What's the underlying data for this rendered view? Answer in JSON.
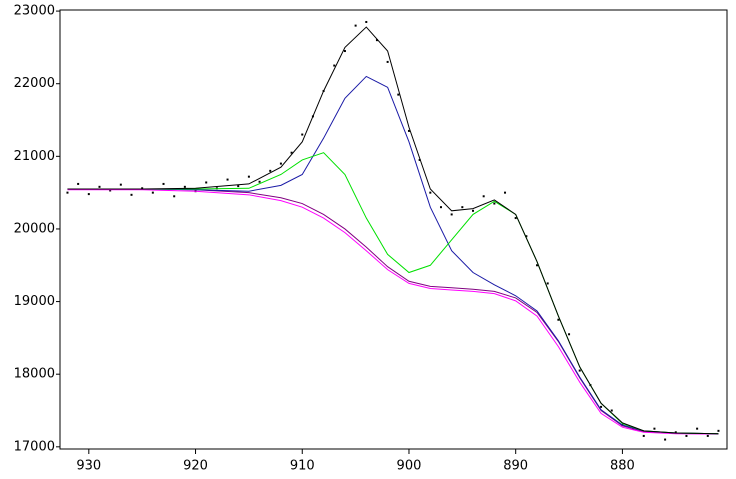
{
  "chart_data": {
    "type": "line",
    "xlim": [
      932.7,
      870.2
    ],
    "ylim": [
      16970,
      23015
    ],
    "xticks": [
      930,
      920,
      910,
      900,
      890,
      880
    ],
    "yticks": [
      17000,
      18000,
      19000,
      20000,
      21000,
      22000,
      23000
    ],
    "grid": false,
    "series": [
      {
        "style": "markers",
        "color": "#000000",
        "x": [
          932,
          931,
          930,
          929,
          928,
          927,
          926,
          925,
          924,
          923,
          922,
          921,
          920,
          919,
          918,
          917,
          916,
          915,
          914,
          913,
          912,
          911,
          910,
          909,
          908,
          907,
          906,
          905,
          904,
          903,
          902,
          901,
          900,
          899,
          898,
          897,
          896,
          895,
          894,
          893,
          892,
          891,
          890,
          889,
          888,
          887,
          886,
          885,
          884,
          883,
          882,
          881,
          880,
          879,
          878,
          877,
          876,
          875,
          874,
          873,
          872,
          871
        ],
        "values": [
          20500,
          20620,
          20480,
          20580,
          20530,
          20610,
          20470,
          20560,
          20500,
          20620,
          20450,
          20580,
          20520,
          20640,
          20560,
          20680,
          20590,
          20720,
          20650,
          20800,
          20900,
          21050,
          21300,
          21550,
          21900,
          22250,
          22450,
          22800,
          22850,
          22600,
          22300,
          21850,
          21350,
          20950,
          20500,
          20300,
          20200,
          20300,
          20250,
          20450,
          20350,
          20500,
          20150,
          19900,
          19500,
          19250,
          18750,
          18550,
          18050,
          17850,
          17550,
          17500,
          17300,
          17250,
          17150,
          17250,
          17100,
          17200,
          17150,
          17250,
          17150,
          17220
        ]
      },
      {
        "style": "line",
        "color": "#800080",
        "x": [
          932,
          930,
          925,
          920,
          915,
          912,
          910,
          908,
          906,
          904,
          902,
          900,
          898,
          896,
          894,
          892,
          890,
          888,
          886,
          884,
          882,
          880,
          878,
          875,
          871
        ],
        "values": [
          20550,
          20550,
          20550,
          20540,
          20500,
          20430,
          20350,
          20200,
          20000,
          19750,
          19480,
          19280,
          19210,
          19190,
          19170,
          19140,
          19050,
          18850,
          18450,
          17950,
          17500,
          17290,
          17210,
          17190,
          17180
        ]
      },
      {
        "style": "line",
        "color": "#ff00ff",
        "x": [
          932,
          930,
          925,
          920,
          915,
          912,
          910,
          908,
          906,
          904,
          902,
          900,
          898,
          896,
          894,
          892,
          890,
          888,
          886,
          884,
          882,
          880,
          878,
          875,
          871
        ],
        "values": [
          20540,
          20540,
          20540,
          20520,
          20470,
          20390,
          20300,
          20150,
          19950,
          19700,
          19440,
          19250,
          19180,
          19160,
          19140,
          19110,
          19010,
          18800,
          18380,
          17890,
          17460,
          17270,
          17200,
          17180,
          17175
        ]
      },
      {
        "style": "line",
        "color": "#1a1aa6",
        "x": [
          932,
          930,
          925,
          920,
          915,
          912,
          910,
          908,
          906,
          904,
          902,
          900,
          898,
          896,
          894,
          892,
          890,
          888,
          886,
          884,
          882,
          880,
          878,
          875,
          871
        ],
        "values": [
          20550,
          20550,
          20550,
          20540,
          20520,
          20600,
          20750,
          21250,
          21800,
          22100,
          21950,
          21200,
          20300,
          19700,
          19400,
          19230,
          19080,
          18870,
          18460,
          17960,
          17510,
          17300,
          17220,
          17190,
          17180
        ]
      },
      {
        "style": "line",
        "color": "#00e000",
        "x": [
          932,
          930,
          925,
          920,
          915,
          912,
          910,
          908,
          906,
          904,
          902,
          900,
          898,
          896,
          894,
          892,
          890,
          888,
          886,
          884,
          882,
          880,
          878,
          875,
          871
        ],
        "values": [
          20550,
          20550,
          20550,
          20550,
          20560,
          20750,
          20950,
          21050,
          20750,
          20150,
          19650,
          19400,
          19500,
          19850,
          20200,
          20380,
          20200,
          19550,
          18800,
          18100,
          17600,
          17320,
          17220,
          17190,
          17180
        ]
      },
      {
        "style": "line",
        "color": "#000000",
        "x": [
          932,
          930,
          925,
          920,
          915,
          912,
          910,
          908,
          906,
          904,
          902,
          900,
          898,
          896,
          894,
          892,
          890,
          888,
          886,
          884,
          882,
          880,
          878,
          875,
          871
        ],
        "values": [
          20550,
          20550,
          20550,
          20560,
          20620,
          20850,
          21200,
          21900,
          22500,
          22780,
          22450,
          21400,
          20550,
          20250,
          20280,
          20400,
          20200,
          19550,
          18800,
          18100,
          17600,
          17330,
          17220,
          17190,
          17180
        ]
      }
    ]
  }
}
